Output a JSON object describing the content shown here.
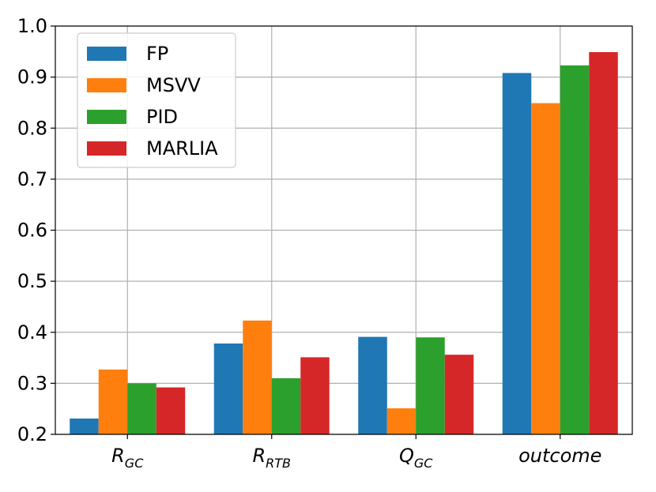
{
  "chart_data": {
    "type": "bar",
    "categories": [
      {
        "base": "R",
        "sub": "GC"
      },
      {
        "base": "R",
        "sub": "RTB"
      },
      {
        "base": "Q",
        "sub": "GC"
      },
      {
        "base": "outcome",
        "sub": ""
      }
    ],
    "series": [
      {
        "name": "FP",
        "color": "#1f77b4",
        "values": [
          0.231,
          0.378,
          0.391,
          0.908
        ]
      },
      {
        "name": "MSVV",
        "color": "#ff7f0e",
        "values": [
          0.327,
          0.423,
          0.251,
          0.849
        ]
      },
      {
        "name": "PID",
        "color": "#2ca02c",
        "values": [
          0.3,
          0.31,
          0.39,
          0.923
        ]
      },
      {
        "name": "MARLIA",
        "color": "#d62728",
        "values": [
          0.292,
          0.351,
          0.356,
          0.949
        ]
      }
    ],
    "yticks": [
      "0.2",
      "0.3",
      "0.4",
      "0.5",
      "0.6",
      "0.7",
      "0.8",
      "0.9",
      "1.0"
    ],
    "ylim": [
      0.2,
      1.0
    ],
    "grid": true,
    "legend_position": "top-left"
  }
}
